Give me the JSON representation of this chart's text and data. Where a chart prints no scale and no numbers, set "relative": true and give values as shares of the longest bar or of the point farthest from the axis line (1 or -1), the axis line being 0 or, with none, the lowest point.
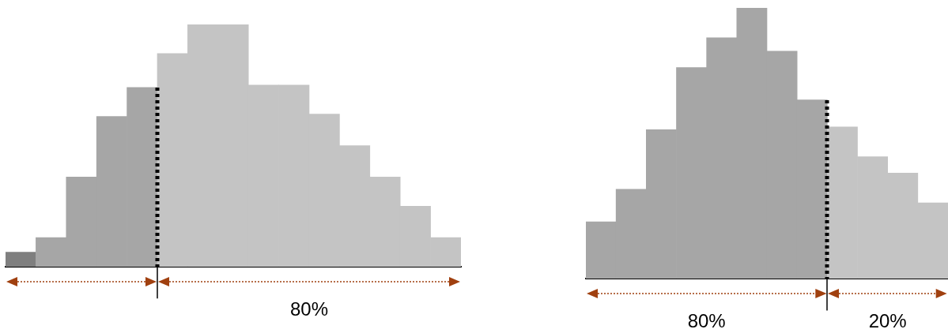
{
  "chart_data": [
    {
      "type": "bar",
      "relative": true,
      "categories": [
        null,
        null,
        null,
        null,
        null,
        null,
        null,
        null,
        null,
        null,
        null,
        null,
        null,
        null,
        null
      ],
      "values": [
        0.06,
        0.12,
        0.37,
        0.62,
        0.74,
        0.88,
        1,
        1,
        0.75,
        0.75,
        0.63,
        0.5,
        0.37,
        0.25,
        0.12
      ],
      "colors": [
        "#7f7f7f",
        "#a6a6a6",
        "#a6a6a6",
        "#a6a6a6",
        "#a6a6a6",
        "#c4c4c4",
        "#c4c4c4",
        "#c4c4c4",
        "#c4c4c4",
        "#c4c4c4",
        "#c4c4c4",
        "#c4c4c4",
        "#c4c4c4",
        "#c4c4c4",
        "#c4c4c4"
      ],
      "annotations": [
        "80%"
      ],
      "grid": false,
      "legend": false
    },
    {
      "type": "bar",
      "relative": true,
      "categories": [
        null,
        null,
        null,
        null,
        null,
        null,
        null,
        null,
        null,
        null,
        null,
        null
      ],
      "values": [
        0.21,
        0.33,
        0.55,
        0.78,
        0.89,
        1,
        0.84,
        0.66,
        0.56,
        0.45,
        0.39,
        0.28
      ],
      "colors": [
        "#a6a6a6",
        "#a6a6a6",
        "#a6a6a6",
        "#a6a6a6",
        "#a6a6a6",
        "#a6a6a6",
        "#a6a6a6",
        "#a6a6a6",
        "#c4c4c4",
        "#c4c4c4",
        "#c4c4c4",
        "#c4c4c4"
      ],
      "annotations": [
        "80%",
        "20%"
      ],
      "grid": false,
      "legend": false
    }
  ]
}
